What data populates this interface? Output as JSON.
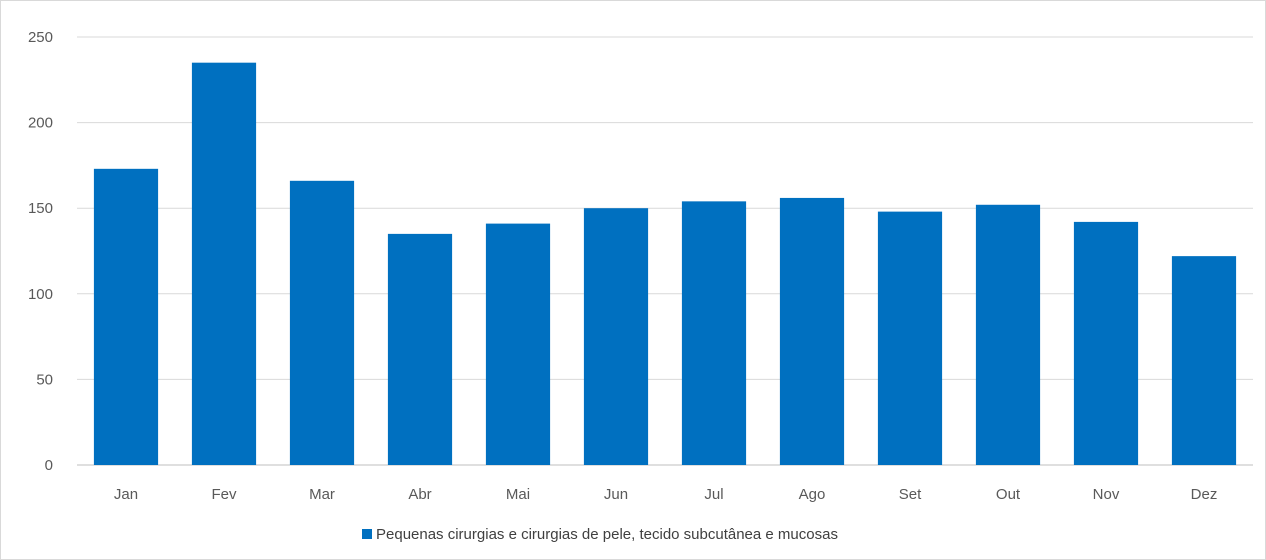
{
  "chart_data": {
    "type": "bar",
    "categories": [
      "Jan",
      "Fev",
      "Mar",
      "Abr",
      "Mai",
      "Jun",
      "Jul",
      "Ago",
      "Set",
      "Out",
      "Nov",
      "Dez"
    ],
    "series": [
      {
        "name": "Pequenas cirurgias e cirurgias de pele, tecido subcutânea e mucosas",
        "values": [
          173,
          235,
          166,
          135,
          141,
          150,
          154,
          156,
          148,
          152,
          142,
          122
        ],
        "color": "#0070c0"
      }
    ],
    "title": "",
    "xlabel": "",
    "ylabel": "",
    "ylim": [
      0,
      250
    ],
    "yticks": [
      0,
      50,
      100,
      150,
      200,
      250
    ],
    "grid": true,
    "legend_position": "bottom"
  }
}
